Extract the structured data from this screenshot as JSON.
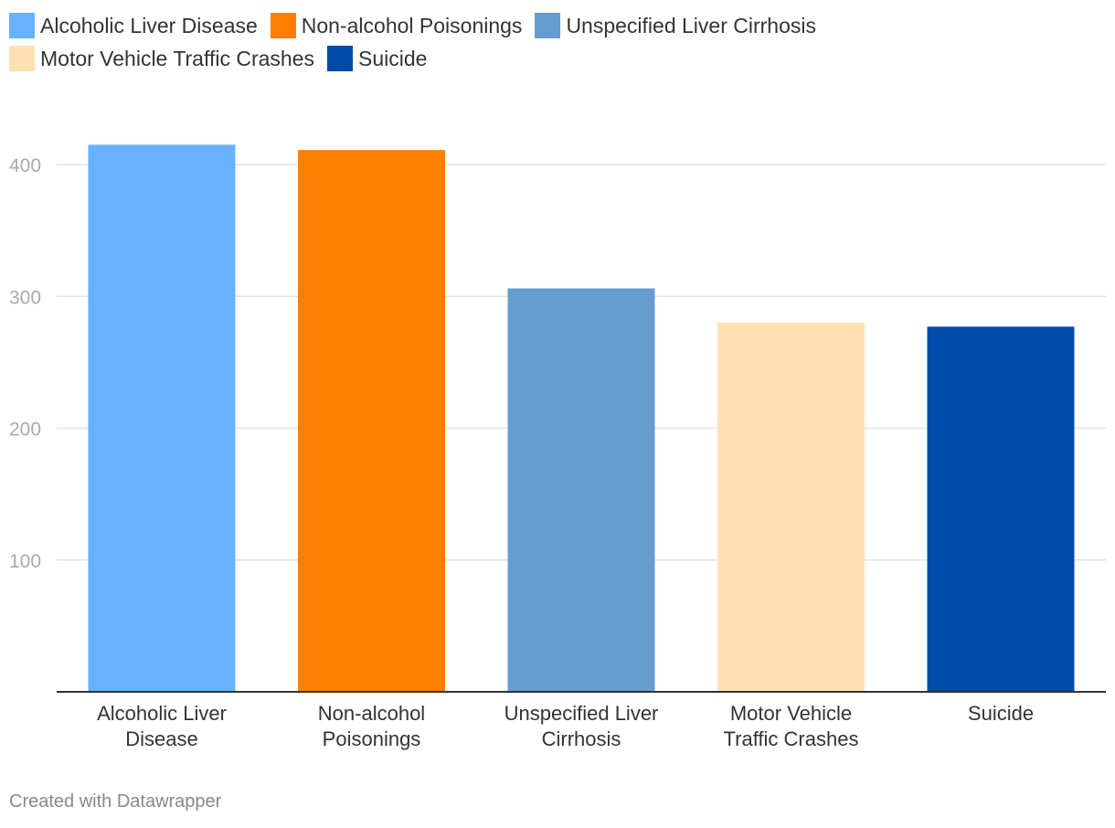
{
  "chart_data": {
    "type": "bar",
    "categories": [
      "Alcoholic Liver Disease",
      "Non-alcohol Poisonings",
      "Unspecified Liver Cirrhosis",
      "Motor Vehicle Traffic Crashes",
      "Suicide"
    ],
    "category_label_lines": [
      [
        "Alcoholic Liver",
        "Disease"
      ],
      [
        "Non-alcohol",
        "Poisonings"
      ],
      [
        "Unspecified Liver",
        "Cirrhosis"
      ],
      [
        "Motor Vehicle",
        "Traffic Crashes"
      ],
      [
        "Suicide"
      ]
    ],
    "values": [
      415,
      411,
      306,
      280,
      277
    ],
    "colors": [
      "#67b2ff",
      "#ff7f00",
      "#679cce",
      "#fde1b2",
      "#004ba9"
    ],
    "yticks": [
      100,
      200,
      300,
      400
    ],
    "ylim": [
      0,
      420
    ],
    "grid": true,
    "legend_placement": "top",
    "title": "",
    "xlabel": "",
    "ylabel": ""
  },
  "footer": {
    "credit": "Created with Datawrapper"
  }
}
